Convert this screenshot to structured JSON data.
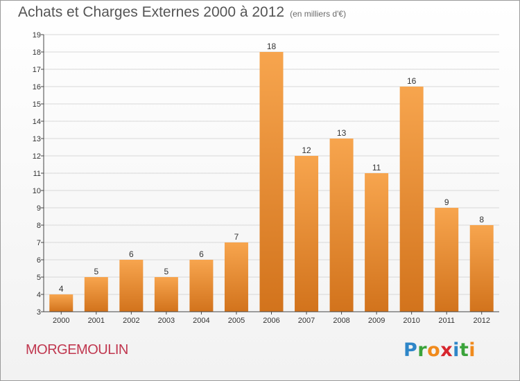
{
  "header": {
    "title": "Achats et Charges Externes 2000 à 2012",
    "subtitle": "(en milliers d'€)"
  },
  "footer": {
    "commune": "MORGEMOULIN",
    "logo": [
      {
        "ch": "P",
        "color": "#2e86c8"
      },
      {
        "ch": "r",
        "color": "#3aa33a"
      },
      {
        "ch": "o",
        "color": "#f08a1c"
      },
      {
        "ch": "x",
        "color": "#d7262e"
      },
      {
        "ch": "i",
        "color": "#2e86c8"
      },
      {
        "ch": "t",
        "color": "#3aa33a"
      },
      {
        "ch": "i",
        "color": "#f08a1c"
      }
    ]
  },
  "colors": {
    "bar_light": "#f7a54e",
    "bar_dark": "#d2731c",
    "grid": "#d8d8d8",
    "axis": "#444444"
  },
  "chart_data": {
    "type": "bar",
    "categories": [
      "2000",
      "2001",
      "2002",
      "2003",
      "2004",
      "2005",
      "2006",
      "2007",
      "2008",
      "2009",
      "2010",
      "2011",
      "2012"
    ],
    "values": [
      4,
      5,
      6,
      5,
      6,
      7,
      18,
      12,
      13,
      11,
      16,
      9,
      8
    ],
    "ylim": [
      3,
      19
    ],
    "yticks": [
      3,
      4,
      5,
      6,
      7,
      8,
      9,
      10,
      11,
      12,
      13,
      14,
      15,
      16,
      17,
      18,
      19
    ],
    "grid": true,
    "data_labels": true
  }
}
